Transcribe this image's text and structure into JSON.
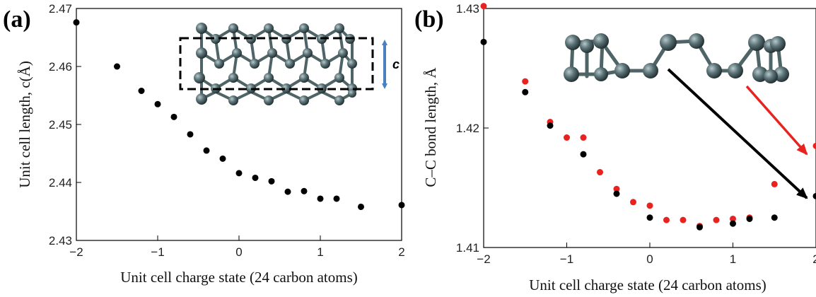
{
  "chart_data": [
    {
      "type": "scatter",
      "panel_label": "(a)",
      "xlabel": "Unit cell charge state (24 carbon atoms)",
      "ylabel": "Unit cell length,  c(Å)",
      "xlim": [
        -2,
        2
      ],
      "ylim": [
        2.43,
        2.47
      ],
      "xticks": [
        "-2",
        "-1",
        "0",
        "1",
        "2"
      ],
      "yticks": [
        "2.43",
        "2.44",
        "2.45",
        "2.46",
        "2.47"
      ],
      "inset_label": "c",
      "series": [
        {
          "color": "#000000",
          "x": [
            -2.0,
            -1.5,
            -1.2,
            -1.0,
            -0.8,
            -0.6,
            -0.4,
            -0.2,
            0.0,
            0.2,
            0.4,
            0.6,
            0.8,
            1.0,
            1.2,
            1.5,
            2.0
          ],
          "y": [
            2.4676,
            2.46,
            2.4558,
            2.4535,
            2.4513,
            2.4483,
            2.4455,
            2.4441,
            2.4416,
            2.4408,
            2.4402,
            2.4384,
            2.4385,
            2.4372,
            2.4372,
            2.4358,
            2.4361
          ]
        }
      ]
    },
    {
      "type": "scatter",
      "panel_label": "(b)",
      "xlabel": "Unit cell charge state (24 carbon atoms)",
      "ylabel": "C–C bond length,  Å",
      "xlim": [
        -2,
        2
      ],
      "ylim": [
        1.41,
        1.43
      ],
      "xticks": [
        "-2",
        "-1",
        "0",
        "1",
        "2"
      ],
      "yticks": [
        "1.41",
        "1.42",
        "1.43"
      ],
      "series": [
        {
          "color": "#e8231f",
          "x": [
            -2.0,
            -1.5,
            -1.2,
            -1.0,
            -0.8,
            -0.6,
            -0.4,
            -0.2,
            0.0,
            0.2,
            0.4,
            0.6,
            0.8,
            1.0,
            1.2,
            1.5,
            2.0
          ],
          "y": [
            1.4302,
            1.4239,
            1.4205,
            1.4192,
            1.4192,
            1.4163,
            1.4149,
            1.4138,
            1.4135,
            1.4123,
            1.4123,
            1.4118,
            1.4123,
            1.4124,
            1.4125,
            1.4153,
            1.4185
          ]
        },
        {
          "color": "#000000",
          "x": [
            -2.0,
            -1.5,
            -1.2,
            -0.8,
            -0.4,
            0.0,
            0.6,
            1.0,
            1.2,
            1.5,
            2.0
          ],
          "y": [
            1.4272,
            1.423,
            1.4202,
            1.4178,
            1.4145,
            1.4125,
            1.4117,
            1.412,
            1.4124,
            1.4125,
            1.4143
          ]
        }
      ]
    }
  ]
}
